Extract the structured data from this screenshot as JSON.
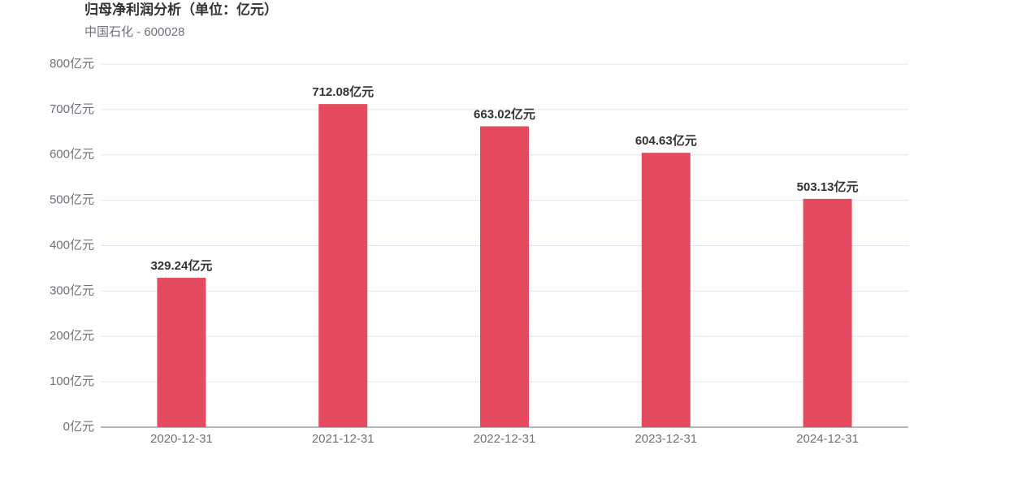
{
  "chart_data": {
    "type": "bar",
    "title": "归母净利润分析（单位：亿元）",
    "subtitle": "中国石化 - 600028",
    "categories": [
      "2020-12-31",
      "2021-12-31",
      "2022-12-31",
      "2023-12-31",
      "2024-12-31"
    ],
    "values": [
      329.24,
      712.08,
      663.02,
      604.63,
      503.13
    ],
    "value_labels": [
      "329.24亿元",
      "712.08亿元",
      "663.02亿元",
      "604.63亿元",
      "503.13亿元"
    ],
    "color": "#e54b5e",
    "ylim": [
      0,
      800
    ],
    "yticks": [
      {
        "value": 0,
        "label": "0亿元"
      },
      {
        "value": 100,
        "label": "100亿元"
      },
      {
        "value": 200,
        "label": "200亿元"
      },
      {
        "value": 300,
        "label": "300亿元"
      },
      {
        "value": 400,
        "label": "400亿元"
      },
      {
        "value": 500,
        "label": "500亿元"
      },
      {
        "value": 600,
        "label": "600亿元"
      },
      {
        "value": 700,
        "label": "700亿元"
      },
      {
        "value": 800,
        "label": "800亿元"
      }
    ],
    "grid": true
  }
}
